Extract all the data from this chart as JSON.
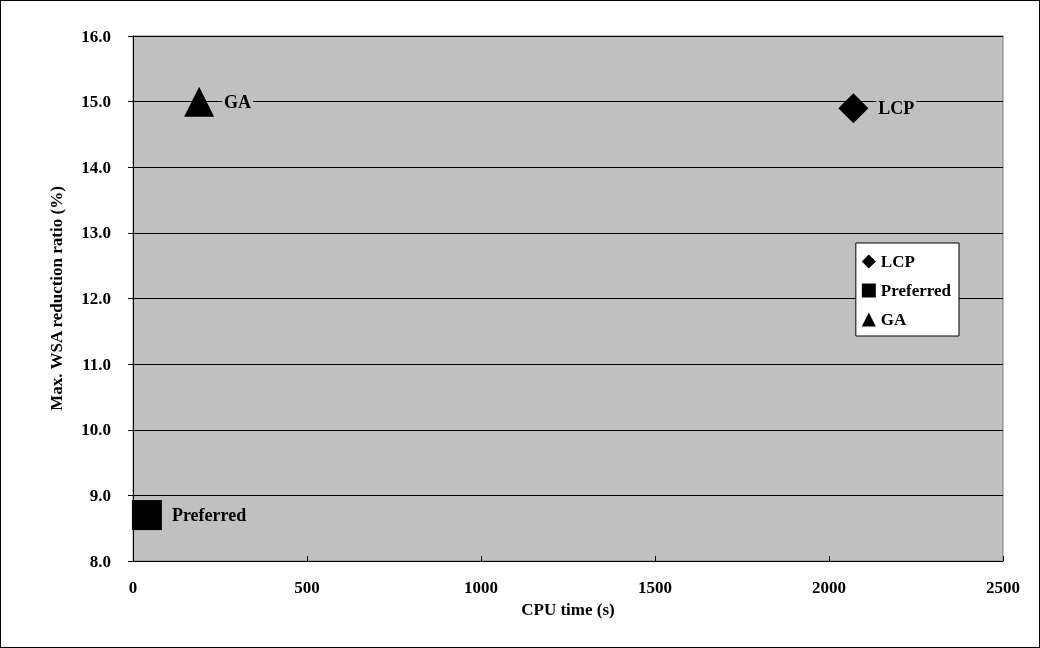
{
  "chart_data": {
    "type": "scatter",
    "xlabel": "CPU time (s)",
    "ylabel": "Max. WSA reduction ratio (%)",
    "series": [
      {
        "name": "LCP",
        "color": "#000000",
        "marker": "diamond",
        "x": [
          2070
        ],
        "values": [
          14.9
        ]
      },
      {
        "name": "Preferred",
        "color": "#000000",
        "marker": "square",
        "x": [
          40
        ],
        "values": [
          8.7
        ]
      },
      {
        "name": "GA",
        "color": "#000000",
        "marker": "triangle",
        "x": [
          190
        ],
        "values": [
          15.0
        ]
      }
    ],
    "xlim": [
      0,
      2500
    ],
    "xticks": [
      0,
      500,
      1000,
      1500,
      2000,
      2500
    ],
    "ylim": [
      8,
      16
    ],
    "yticks": [
      {
        "value": 8,
        "label": "8.0"
      },
      {
        "value": 9,
        "label": "9.0"
      },
      {
        "value": 10,
        "label": "10.0"
      },
      {
        "value": 11,
        "label": "11.0"
      },
      {
        "value": 12,
        "label": "12.0"
      },
      {
        "value": 13,
        "label": "13.0"
      },
      {
        "value": 14,
        "label": "14.0"
      },
      {
        "value": 15,
        "label": "15.0"
      },
      {
        "value": 16,
        "label": "16.0"
      }
    ],
    "grid": "y",
    "legend": "right"
  }
}
